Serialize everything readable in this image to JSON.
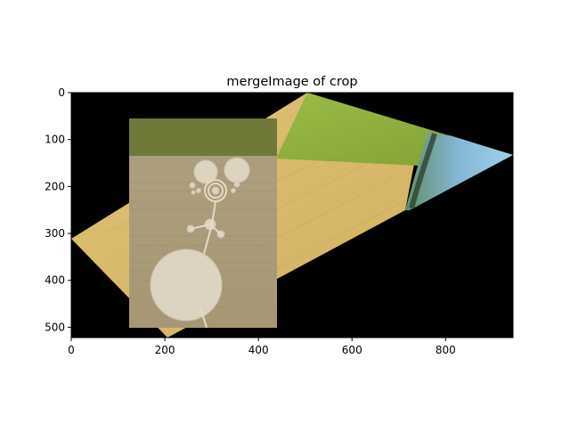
{
  "chart_data": {
    "type": "image",
    "title": "mergeImage of crop",
    "xlabel": "",
    "ylabel": "",
    "xlim": [
      0,
      944
    ],
    "ylim": [
      522,
      0
    ],
    "x_ticks": [
      0,
      200,
      400,
      600,
      800
    ],
    "y_ticks": [
      0,
      100,
      200,
      300,
      400,
      500
    ],
    "background_color": "#000000",
    "layers": [
      {
        "name": "field",
        "polygon": [
          [
            0,
            312
          ],
          [
            505,
            0
          ],
          [
            944,
            132
          ],
          [
            775,
            200
          ],
          [
            205,
            522
          ]
        ]
      },
      {
        "name": "overlay",
        "rect": {
          "x0": 124,
          "y0": 55,
          "x1": 440,
          "y1": 500
        }
      }
    ]
  },
  "colors": {
    "field_green": "#8fae3a",
    "field_yellow": "#d9b96a",
    "overlay_tan": "#ad9e7c",
    "overlay_green": "#6f7a38",
    "circle_fill": "#ddd3c1"
  }
}
